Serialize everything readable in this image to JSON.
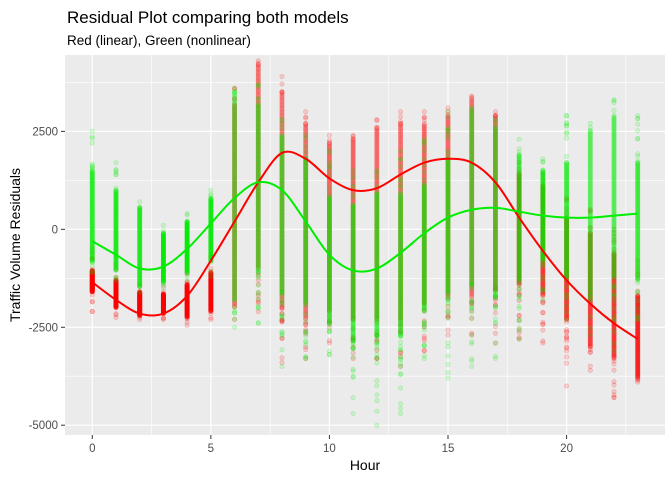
{
  "chart_data": {
    "type": "scatter",
    "title": "Residual Plot comparing both models",
    "subtitle": "Red (linear), Green (nonlinear)",
    "xlabel": "Hour",
    "ylabel": "Traffic Volume Residuals",
    "xlim": [
      -1.15,
      24.15
    ],
    "ylim": [
      -5250,
      4450
    ],
    "x_ticks": [
      0,
      5,
      10,
      15,
      20
    ],
    "x_tick_labels": [
      "0",
      "5",
      "10",
      "15",
      "20"
    ],
    "y_ticks": [
      -5000,
      -2500,
      0,
      2500
    ],
    "y_tick_labels": [
      "-5000",
      "-2500",
      "0",
      "2500"
    ],
    "grid": true,
    "legend": "none",
    "point_alpha": 0.15,
    "series": [
      {
        "color": "#ff0000",
        "points_range": [
          {
            "x": 0,
            "dense": [
              -1600,
              -1050
            ],
            "sparse": [
              -2100,
              -500
            ]
          },
          {
            "x": 1,
            "dense": [
              -2000,
              -1300
            ],
            "sparse": [
              -2250,
              -900
            ]
          },
          {
            "x": 2,
            "dense": [
              -2200,
              -1600
            ],
            "sparse": [
              -2300,
              -1400
            ]
          },
          {
            "x": 3,
            "dense": [
              -2150,
              -1650
            ],
            "sparse": [
              -2300,
              -1450
            ]
          },
          {
            "x": 4,
            "dense": [
              -2250,
              -1400
            ],
            "sparse": [
              -2450,
              -1100
            ]
          },
          {
            "x": 5,
            "dense": [
              -2100,
              -1100
            ],
            "sparse": [
              -2300,
              -700
            ]
          },
          {
            "x": 6,
            "dense": [
              -1900,
              3200
            ],
            "sparse": [
              -2300,
              3600
            ]
          },
          {
            "x": 7,
            "dense": [
              -1000,
              4200
            ],
            "sparse": [
              -2100,
              4300
            ]
          },
          {
            "x": 8,
            "dense": [
              -2000,
              3500
            ],
            "sparse": [
              -3400,
              3900
            ]
          },
          {
            "x": 9,
            "dense": [
              -2300,
              2700
            ],
            "sparse": [
              -3300,
              3000
            ]
          },
          {
            "x": 10,
            "dense": [
              -2100,
              2200
            ],
            "sparse": [
              -2900,
              2400
            ]
          },
          {
            "x": 11,
            "dense": [
              -2300,
              2300
            ],
            "sparse": [
              -3300,
              2400
            ]
          },
          {
            "x": 12,
            "dense": [
              -2300,
              2600
            ],
            "sparse": [
              -3300,
              2800
            ]
          },
          {
            "x": 13,
            "dense": [
              -2300,
              2700
            ],
            "sparse": [
              -3500,
              3000
            ]
          },
          {
            "x": 14,
            "dense": [
              -1900,
              2700
            ],
            "sparse": [
              -3100,
              3000
            ]
          },
          {
            "x": 15,
            "dense": [
              -1700,
              2900
            ],
            "sparse": [
              -2700,
              3100
            ]
          },
          {
            "x": 16,
            "dense": [
              -1700,
              3300
            ],
            "sparse": [
              -2700,
              3400
            ]
          },
          {
            "x": 17,
            "dense": [
              -1500,
              2900
            ],
            "sparse": [
              -2900,
              3000
            ]
          },
          {
            "x": 18,
            "dense": [
              -1400,
              1400
            ],
            "sparse": [
              -2800,
              1700
            ]
          },
          {
            "x": 19,
            "dense": [
              -1700,
              1100
            ],
            "sparse": [
              -2900,
              1400
            ]
          },
          {
            "x": 20,
            "dense": [
              -2300,
              300
            ],
            "sparse": [
              -4000,
              800
            ]
          },
          {
            "x": 21,
            "dense": [
              -3000,
              -100
            ],
            "sparse": [
              -3600,
              500
            ]
          },
          {
            "x": 22,
            "dense": [
              -3300,
              -600
            ],
            "sparse": [
              -4300,
              0
            ]
          },
          {
            "x": 23,
            "dense": [
              -3800,
              -1700
            ],
            "sparse": [
              -3900,
              -800
            ]
          }
        ],
        "trend": {
          "x": [
            0,
            1,
            2,
            3,
            4,
            5,
            6,
            7,
            8,
            9,
            10,
            11,
            12,
            13,
            14,
            15,
            16,
            17,
            18,
            19,
            20,
            21,
            22,
            23
          ],
          "y": [
            -1350,
            -1800,
            -2150,
            -2150,
            -1700,
            -800,
            200,
            1200,
            1950,
            1800,
            1300,
            1000,
            1050,
            1400,
            1700,
            1800,
            1700,
            1200,
            300,
            -550,
            -1300,
            -1900,
            -2400,
            -2800
          ]
        }
      },
      {
        "color": "#00ee00",
        "points_range": [
          {
            "x": 0,
            "dense": [
              -850,
              1500
            ],
            "sparse": [
              -1100,
              2500
            ]
          },
          {
            "x": 1,
            "dense": [
              -1050,
              1000
            ],
            "sparse": [
              -1300,
              1700
            ]
          },
          {
            "x": 2,
            "dense": [
              -1450,
              550
            ],
            "sparse": [
              -1600,
              700
            ]
          },
          {
            "x": 3,
            "dense": [
              -1350,
              -100
            ],
            "sparse": [
              -1500,
              100
            ]
          },
          {
            "x": 4,
            "dense": [
              -1100,
              200
            ],
            "sparse": [
              -1300,
              400
            ]
          },
          {
            "x": 5,
            "dense": [
              -800,
              800
            ],
            "sparse": [
              -1200,
              1000
            ]
          },
          {
            "x": 6,
            "dense": [
              -1800,
              3500
            ],
            "sparse": [
              -2500,
              3600
            ]
          },
          {
            "x": 7,
            "dense": [
              -1100,
              3200
            ],
            "sparse": [
              -2400,
              3700
            ]
          },
          {
            "x": 8,
            "dense": [
              -1600,
              2400
            ],
            "sparse": [
              -3500,
              2800
            ]
          },
          {
            "x": 9,
            "dense": [
              -1900,
              1800
            ],
            "sparse": [
              -3300,
              2400
            ]
          },
          {
            "x": 10,
            "dense": [
              -2400,
              800
            ],
            "sparse": [
              -3200,
              2000
            ]
          },
          {
            "x": 11,
            "dense": [
              -2800,
              600
            ],
            "sparse": [
              -4700,
              1500
            ]
          },
          {
            "x": 12,
            "dense": [
              -2700,
              900
            ],
            "sparse": [
              -5000,
              1500
            ]
          },
          {
            "x": 13,
            "dense": [
              -2700,
              900
            ],
            "sparse": [
              -4700,
              2000
            ]
          },
          {
            "x": 14,
            "dense": [
              -2100,
              1100
            ],
            "sparse": [
              -3300,
              2300
            ]
          },
          {
            "x": 15,
            "dense": [
              -1600,
              1800
            ],
            "sparse": [
              -3800,
              3000
            ]
          },
          {
            "x": 16,
            "dense": [
              -1400,
              3000
            ],
            "sparse": [
              -3500,
              3100
            ]
          },
          {
            "x": 17,
            "dense": [
              -1700,
              2600
            ],
            "sparse": [
              -3300,
              2800
            ]
          },
          {
            "x": 18,
            "dense": [
              -1300,
              1900
            ],
            "sparse": [
              -2800,
              2300
            ]
          },
          {
            "x": 19,
            "dense": [
              -800,
              1500
            ],
            "sparse": [
              -1800,
              1800
            ]
          },
          {
            "x": 20,
            "dense": [
              -1200,
              1700
            ],
            "sparse": [
              -2300,
              2900
            ]
          },
          {
            "x": 21,
            "dense": [
              -1600,
              2500
            ],
            "sparse": [
              -2700,
              2700
            ]
          },
          {
            "x": 22,
            "dense": [
              -1200,
              2900
            ],
            "sparse": [
              -3100,
              3300
            ]
          },
          {
            "x": 23,
            "dense": [
              -1300,
              1700
            ],
            "sparse": [
              -2300,
              2900
            ]
          }
        ],
        "trend": {
          "x": [
            0,
            1,
            2,
            3,
            4,
            5,
            6,
            7,
            8,
            9,
            10,
            11,
            12,
            13,
            14,
            15,
            16,
            17,
            18,
            19,
            20,
            21,
            22,
            23
          ],
          "y": [
            -300,
            -650,
            -1000,
            -950,
            -500,
            150,
            800,
            1200,
            1000,
            200,
            -650,
            -1050,
            -1000,
            -600,
            -100,
            300,
            500,
            550,
            450,
            350,
            300,
            300,
            350,
            400
          ]
        }
      }
    ]
  }
}
